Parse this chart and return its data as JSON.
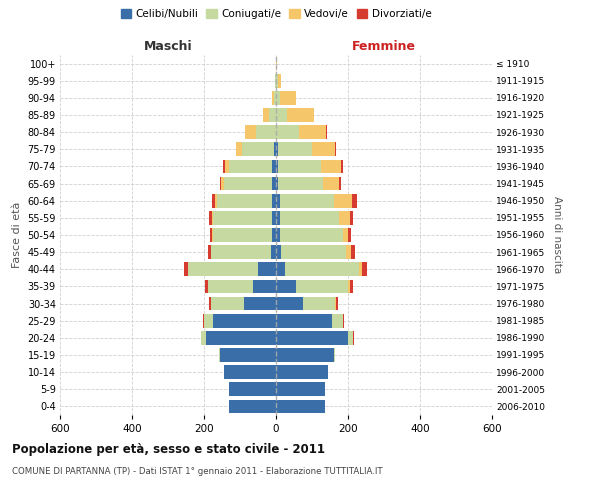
{
  "age_groups": [
    "0-4",
    "5-9",
    "10-14",
    "15-19",
    "20-24",
    "25-29",
    "30-34",
    "35-39",
    "40-44",
    "45-49",
    "50-54",
    "55-59",
    "60-64",
    "65-69",
    "70-74",
    "75-79",
    "80-84",
    "85-89",
    "90-94",
    "95-99",
    "100+"
  ],
  "birth_years": [
    "2006-2010",
    "2001-2005",
    "1996-2000",
    "1991-1995",
    "1986-1990",
    "1981-1985",
    "1976-1980",
    "1971-1975",
    "1966-1970",
    "1961-1965",
    "1956-1960",
    "1951-1955",
    "1946-1950",
    "1941-1945",
    "1936-1940",
    "1931-1935",
    "1926-1930",
    "1921-1925",
    "1916-1920",
    "1911-1915",
    "≤ 1910"
  ],
  "male": {
    "celibe": [
      130,
      130,
      145,
      155,
      195,
      175,
      90,
      65,
      50,
      15,
      10,
      10,
      10,
      10,
      10,
      5,
      0,
      0,
      0,
      0,
      0
    ],
    "coniugato": [
      0,
      0,
      0,
      3,
      12,
      25,
      90,
      125,
      195,
      165,
      165,
      165,
      155,
      135,
      120,
      90,
      55,
      20,
      5,
      2,
      0
    ],
    "vedovo": [
      0,
      0,
      0,
      0,
      0,
      0,
      0,
      0,
      0,
      0,
      2,
      3,
      5,
      8,
      12,
      15,
      30,
      15,
      5,
      0,
      0
    ],
    "divorziato": [
      0,
      0,
      0,
      0,
      2,
      3,
      5,
      8,
      10,
      10,
      5,
      7,
      8,
      3,
      5,
      0,
      0,
      0,
      0,
      0,
      0
    ]
  },
  "female": {
    "nubile": [
      135,
      135,
      145,
      160,
      200,
      155,
      75,
      55,
      25,
      15,
      10,
      10,
      10,
      5,
      5,
      5,
      0,
      0,
      0,
      0,
      0
    ],
    "coniugata": [
      0,
      0,
      0,
      5,
      15,
      30,
      90,
      145,
      205,
      180,
      175,
      165,
      150,
      125,
      120,
      95,
      65,
      30,
      10,
      5,
      0
    ],
    "vedova": [
      0,
      0,
      0,
      0,
      0,
      2,
      3,
      5,
      8,
      12,
      15,
      30,
      50,
      45,
      55,
      65,
      75,
      75,
      45,
      10,
      2
    ],
    "divorziata": [
      0,
      0,
      0,
      0,
      2,
      3,
      5,
      10,
      15,
      12,
      8,
      10,
      15,
      5,
      5,
      3,
      3,
      0,
      0,
      0,
      0
    ]
  },
  "colors": {
    "celibe": "#3a6ea8",
    "coniugato": "#c5d9a0",
    "vedovo": "#f5c76a",
    "divorziato": "#d63b2f"
  },
  "title": "Popolazione per età, sesso e stato civile - 2011",
  "subtitle": "COMUNE DI PARTANNA (TP) - Dati ISTAT 1° gennaio 2011 - Elaborazione TUTTITALIA.IT",
  "xlabel_left": "Maschi",
  "xlabel_right": "Femmine",
  "ylabel_left": "Fasce di età",
  "ylabel_right": "Anni di nascita",
  "xlim": 600,
  "legend_labels": [
    "Celibi/Nubili",
    "Coniugati/e",
    "Vedovi/e",
    "Divorziati/e"
  ],
  "background_color": "#ffffff",
  "grid_color": "#cccccc"
}
